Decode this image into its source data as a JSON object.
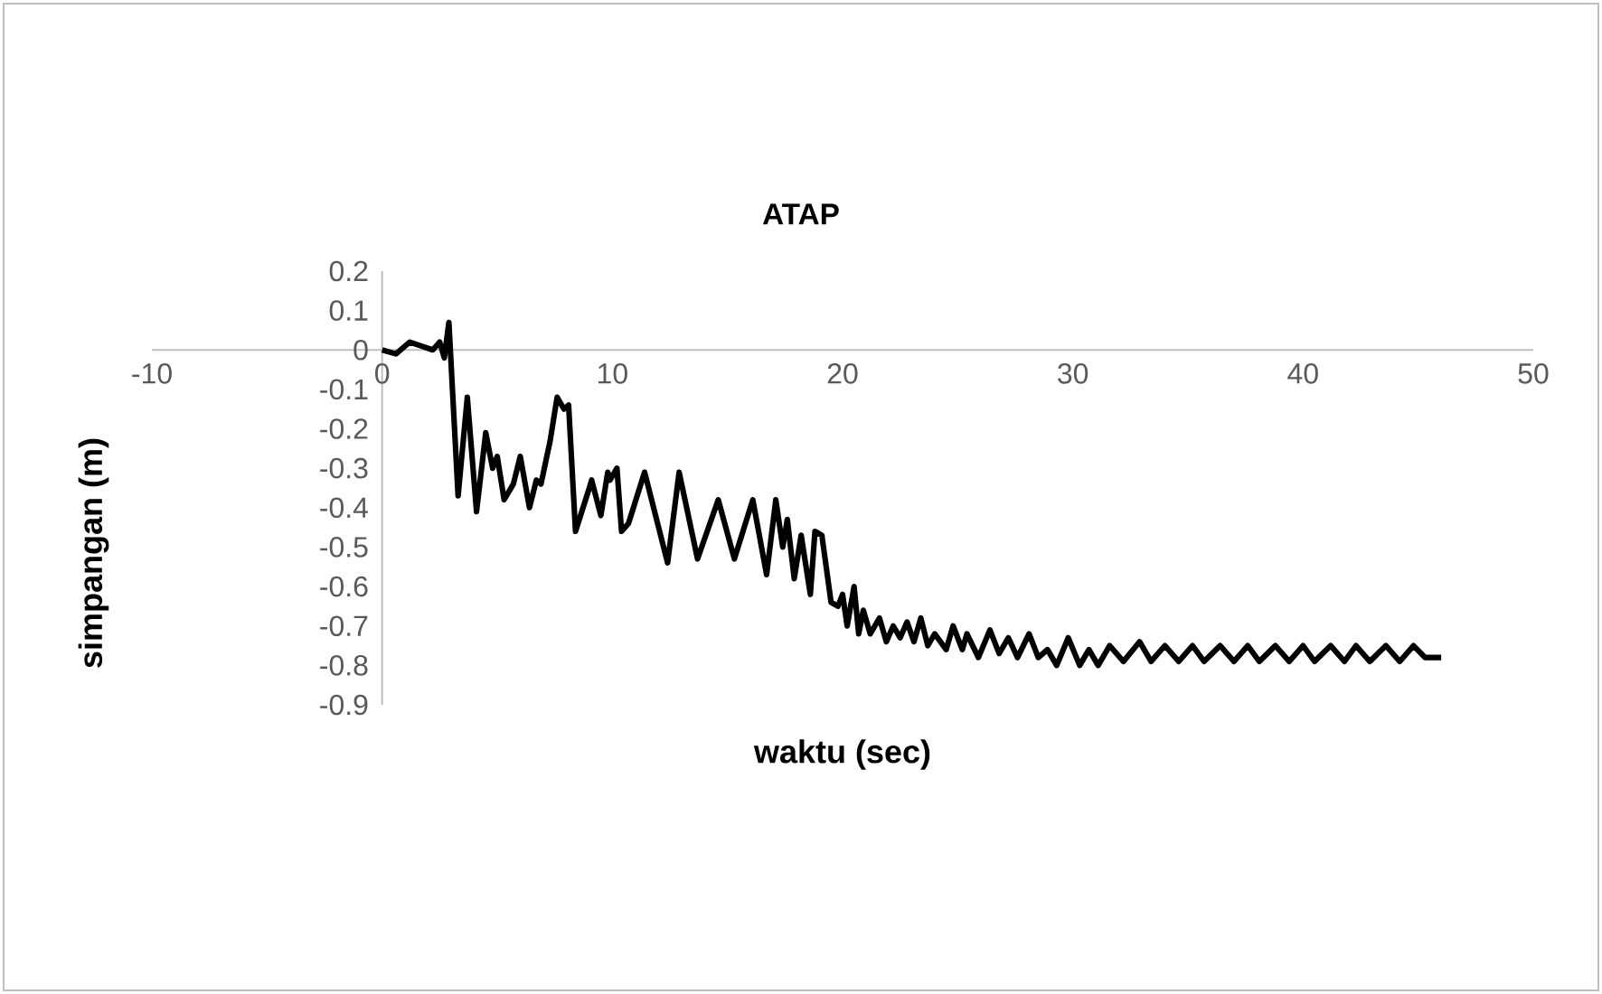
{
  "chart_data": {
    "type": "line",
    "title": "ATAP",
    "xlabel": "waktu (sec)",
    "ylabel": "simpangan (m)",
    "color": "#000000",
    "xlim": [
      -10,
      50
    ],
    "ylim": [
      -0.9,
      0.2
    ],
    "xticks": [
      -10,
      0,
      10,
      20,
      30,
      40,
      50
    ],
    "yticks": [
      -0.9,
      -0.8,
      -0.7,
      -0.6,
      -0.5,
      -0.4,
      -0.3,
      -0.2,
      -0.1,
      0,
      0.1,
      0.2
    ],
    "x": [
      0,
      0.6,
      1.2,
      1.7,
      2.2,
      2.5,
      2.7,
      2.9,
      3.3,
      3.7,
      4.1,
      4.5,
      4.8,
      5.0,
      5.3,
      5.7,
      6.0,
      6.4,
      6.7,
      6.9,
      7.3,
      7.6,
      7.9,
      8.1,
      8.4,
      9.0,
      9.1,
      9.5,
      9.8,
      9.9,
      10.2,
      10.4,
      10.7,
      11.4,
      12.4,
      12.9,
      13.7,
      14.6,
      15.3,
      16.1,
      16.7,
      17.1,
      17.4,
      17.6,
      17.9,
      18.2,
      18.6,
      18.8,
      19.1,
      19.5,
      19.8,
      20.0,
      20.2,
      20.5,
      20.7,
      20.9,
      21.2,
      21.6,
      21.9,
      22.2,
      22.5,
      22.8,
      23.1,
      23.4,
      23.7,
      24.0,
      24.5,
      24.8,
      25.2,
      25.4,
      25.9,
      26.4,
      26.8,
      27.2,
      27.6,
      28.1,
      28.5,
      28.9,
      29.3,
      29.8,
      30.3,
      30.7,
      31.1,
      31.6,
      32.2,
      32.9,
      33.4,
      34.0,
      34.6,
      35.2,
      35.7,
      36.4,
      37.0,
      37.6,
      38.1,
      38.8,
      39.4,
      40.0,
      40.5,
      41.2,
      41.8,
      42.3,
      42.9,
      43.6,
      44.2,
      44.8,
      45.3,
      46.0
    ],
    "values": [
      0,
      -0.01,
      0.02,
      0.01,
      0.0,
      0.02,
      -0.02,
      0.07,
      -0.37,
      -0.12,
      -0.41,
      -0.21,
      -0.3,
      -0.27,
      -0.38,
      -0.34,
      -0.27,
      -0.4,
      -0.33,
      -0.34,
      -0.23,
      -0.12,
      -0.15,
      -0.14,
      -0.46,
      -0.35,
      -0.33,
      -0.42,
      -0.31,
      -0.33,
      -0.3,
      -0.46,
      -0.44,
      -0.31,
      -0.54,
      -0.31,
      -0.53,
      -0.38,
      -0.53,
      -0.38,
      -0.57,
      -0.38,
      -0.5,
      -0.43,
      -0.58,
      -0.47,
      -0.62,
      -0.46,
      -0.47,
      -0.64,
      -0.65,
      -0.62,
      -0.7,
      -0.6,
      -0.72,
      -0.66,
      -0.72,
      -0.68,
      -0.74,
      -0.7,
      -0.73,
      -0.69,
      -0.74,
      -0.68,
      -0.75,
      -0.72,
      -0.76,
      -0.7,
      -0.76,
      -0.72,
      -0.78,
      -0.71,
      -0.77,
      -0.73,
      -0.78,
      -0.72,
      -0.78,
      -0.76,
      -0.8,
      -0.73,
      -0.8,
      -0.76,
      -0.8,
      -0.75,
      -0.79,
      -0.74,
      -0.79,
      -0.75,
      -0.79,
      -0.75,
      -0.79,
      -0.75,
      -0.79,
      -0.75,
      -0.79,
      -0.75,
      -0.79,
      -0.75,
      -0.79,
      -0.75,
      -0.79,
      -0.75,
      -0.79,
      -0.75,
      -0.79,
      -0.75,
      -0.78,
      -0.78
    ]
  }
}
